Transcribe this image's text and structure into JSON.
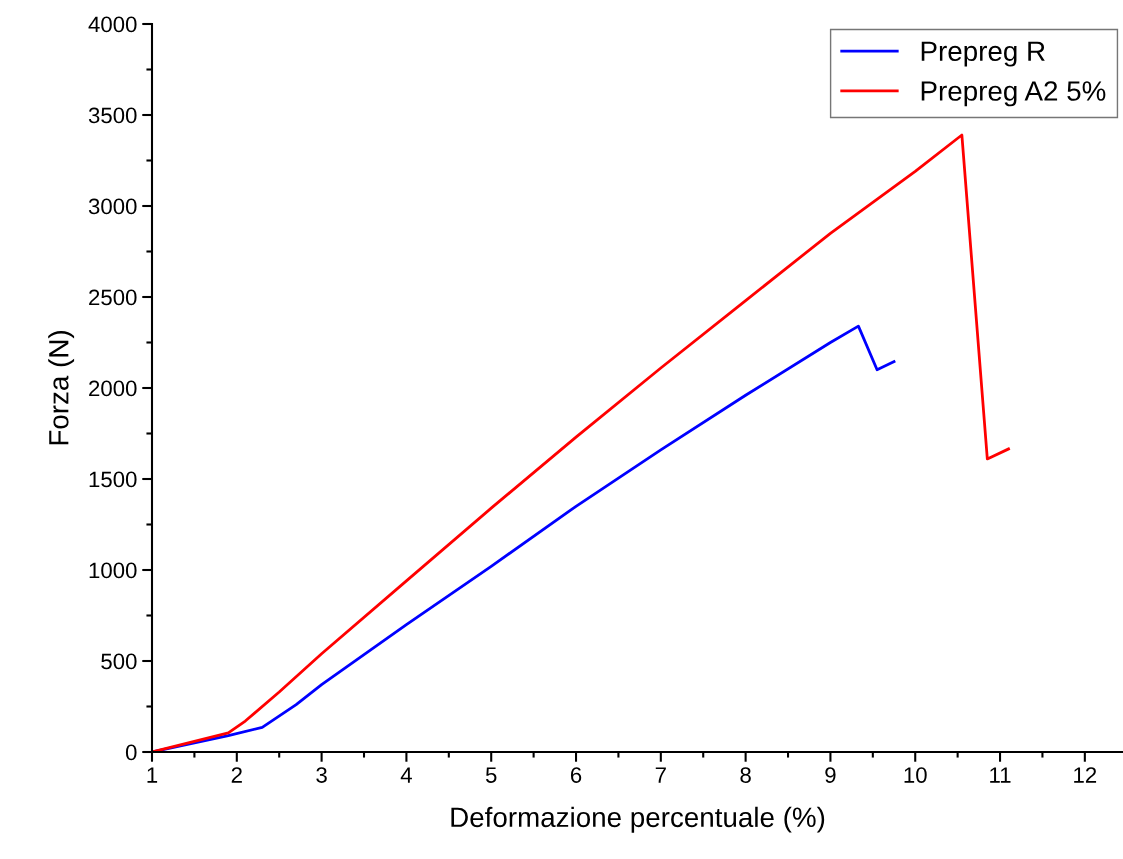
{
  "chart_data": {
    "type": "line",
    "xlabel": "Deformazione percentuale (%)",
    "ylabel": "Forza (N)",
    "xlim": [
      1,
      12.45
    ],
    "xticks": [
      1,
      2,
      3,
      4,
      5,
      6,
      7,
      8,
      9,
      10,
      11,
      12
    ],
    "ylim": [
      0,
      4000
    ],
    "yticks": [
      0,
      500,
      1000,
      1500,
      2000,
      2500,
      3000,
      3500,
      4000
    ],
    "grid": false,
    "legend": "top right",
    "marker": "none",
    "line_style": "solid",
    "series": [
      {
        "name": "Prepreg R",
        "color": "#0000ff",
        "x": [
          1,
          1.9,
          2.3,
          2.7,
          3,
          4,
          5,
          6,
          7,
          8,
          9,
          9.33,
          9.55,
          9.75
        ],
        "values": [
          0,
          90,
          135,
          260,
          370,
          700,
          1020,
          1350,
          1660,
          1960,
          2250,
          2340,
          2100,
          2145
        ]
      },
      {
        "name": "Prepreg A2 5%",
        "color": "#ff0000",
        "x": [
          1,
          1.9,
          2.1,
          2.5,
          3,
          4,
          5,
          6,
          7,
          8,
          9,
          10,
          10.55,
          10.85,
          11.1
        ],
        "values": [
          0,
          105,
          170,
          330,
          540,
          940,
          1340,
          1730,
          2110,
          2480,
          2850,
          3190,
          3390,
          1610,
          1665
        ]
      }
    ]
  }
}
